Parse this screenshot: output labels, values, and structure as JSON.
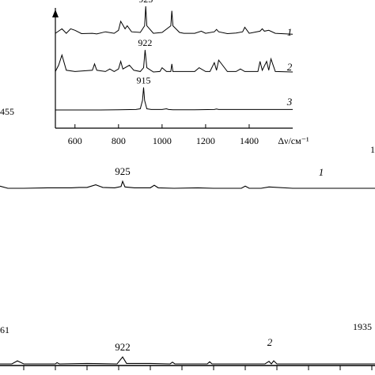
{
  "chart_data": [
    {
      "type": "line",
      "panel": "main",
      "series": [
        {
          "name": "1",
          "x": [
            0,
            10,
            30,
            60,
            90,
            100,
            110,
            121,
            130,
            145,
            153,
            155,
            158,
            170,
            190,
            195,
            200,
            220,
            250,
            270,
            305,
            310,
            315,
            330,
            340,
            370,
            400,
            430,
            474
          ],
          "y": [
            0.05,
            0.0,
            0.0,
            0.01,
            0.01,
            0.02,
            0.02,
            0.08,
            0.02,
            0.01,
            0.04,
            0.16,
            0.03,
            0.01,
            0.01,
            0.07,
            0.01,
            0.0,
            0.01,
            0.0,
            0.0,
            0.05,
            0.0,
            0.0,
            0.03,
            0.0,
            0.0,
            0.0,
            0.0
          ],
          "annotations": [
            {
              "x": 155,
              "text": "925"
            }
          ]
        },
        {
          "name": "2",
          "x": [
            0,
            15,
            22,
            30,
            70,
            72,
            75,
            110,
            148,
            155,
            160,
            190,
            215,
            218,
            221,
            262,
            265,
            268,
            300,
            335,
            340,
            343,
            346,
            350,
            380,
            420,
            474
          ],
          "y": [
            0.0,
            0.0,
            0.07,
            0.0,
            0.0,
            0.03,
            0.0,
            0.01,
            0.0,
            0.16,
            0.01,
            0.01,
            0.0,
            0.04,
            0.0,
            0.0,
            0.05,
            0.0,
            0.0,
            0.0,
            0.06,
            0.0,
            0.07,
            0.0,
            0.0,
            0.0,
            0.0
          ],
          "annotations": [
            {
              "x": 155,
              "text": "922"
            }
          ]
        }
      ],
      "edge_labels": [
        "455",
        "61",
        "1935",
        "1"
      ]
    },
    {
      "type": "line",
      "panel": "inset",
      "xlabel": "Δν/см⁻¹",
      "xlim": [
        510,
        1600
      ],
      "x_ticks": [
        600,
        800,
        1000,
        1200,
        1400
      ],
      "series": [
        {
          "name": "1",
          "x": [
            510,
            540,
            560,
            580,
            600,
            630,
            680,
            700,
            740,
            780,
            800,
            810,
            830,
            840,
            860,
            900,
            920,
            925,
            930,
            960,
            1000,
            1040,
            1045,
            1050,
            1080,
            1100,
            1150,
            1180,
            1200,
            1240,
            1250,
            1260,
            1300,
            1340,
            1370,
            1380,
            1400,
            1450,
            1460,
            1470,
            1490,
            1520,
            1600
          ],
          "y": [
            0.05,
            0.2,
            0.05,
            0.2,
            0.15,
            0.04,
            0.05,
            0.03,
            0.1,
            0.05,
            0.15,
            0.45,
            0.2,
            0.3,
            0.1,
            0.08,
            0.3,
            0.95,
            0.3,
            0.05,
            0.08,
            0.3,
            0.8,
            0.3,
            0.08,
            0.05,
            0.05,
            0.12,
            0.05,
            0.1,
            0.18,
            0.1,
            0.04,
            0.06,
            0.1,
            0.25,
            0.05,
            0.12,
            0.2,
            0.12,
            0.15,
            0.05,
            0.02
          ],
          "annotations": [
            {
              "x": 925,
              "text": "925"
            }
          ]
        },
        {
          "name": "2",
          "x": [
            510,
            525,
            540,
            560,
            600,
            650,
            680,
            690,
            700,
            740,
            760,
            780,
            800,
            810,
            820,
            850,
            870,
            900,
            915,
            922,
            930,
            960,
            990,
            1000,
            1020,
            1040,
            1045,
            1050,
            1100,
            1150,
            1170,
            1200,
            1220,
            1240,
            1250,
            1260,
            1300,
            1340,
            1360,
            1380,
            1400,
            1440,
            1450,
            1460,
            1480,
            1490,
            1500,
            1520,
            1600
          ],
          "y": [
            0.05,
            0.3,
            0.7,
            0.1,
            0.05,
            0.08,
            0.1,
            0.35,
            0.1,
            0.05,
            0.15,
            0.05,
            0.15,
            0.45,
            0.15,
            0.3,
            0.1,
            0.05,
            0.2,
            0.9,
            0.2,
            0.03,
            0.05,
            0.2,
            0.05,
            0.05,
            0.35,
            0.05,
            0.05,
            0.05,
            0.2,
            0.05,
            0.05,
            0.4,
            0.1,
            0.5,
            0.05,
            0.05,
            0.15,
            0.05,
            0.05,
            0.05,
            0.45,
            0.1,
            0.45,
            0.1,
            0.55,
            0.05,
            0.03
          ],
          "annotations": [
            {
              "x": 922,
              "text": "922"
            }
          ]
        },
        {
          "name": "3",
          "x": [
            510,
            600,
            700,
            800,
            880,
            900,
            910,
            915,
            920,
            930,
            950,
            1000,
            1020,
            1030,
            1050,
            1150,
            1240,
            1250,
            1260,
            1400,
            1500,
            1600
          ],
          "y": [
            0.0,
            0.0,
            0.0,
            0.01,
            0.02,
            0.05,
            0.4,
            0.95,
            0.4,
            0.05,
            0.02,
            0.02,
            0.05,
            0.02,
            0.01,
            0.01,
            0.02,
            0.04,
            0.02,
            0.02,
            0.02,
            0.02
          ],
          "annotations": [
            {
              "x": 915,
              "text": "915"
            }
          ]
        }
      ]
    }
  ]
}
